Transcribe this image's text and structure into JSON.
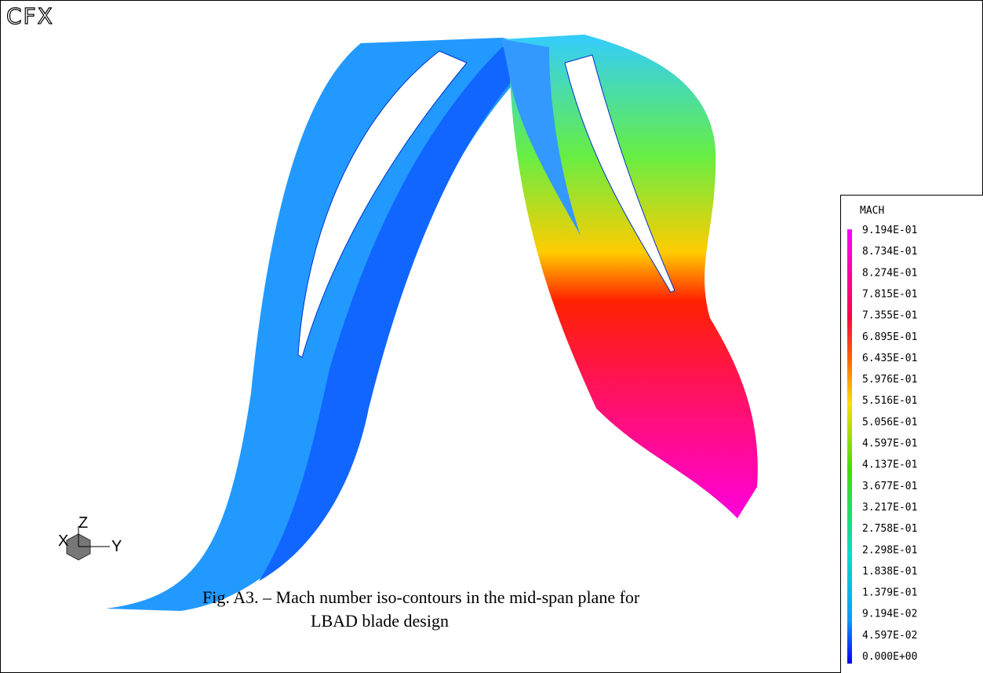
{
  "logo": "CFX",
  "legend": {
    "title": "MACH",
    "labels": [
      "9.194E-01",
      "8.734E-01",
      "8.274E-01",
      "7.815E-01",
      "7.355E-01",
      "6.895E-01",
      "6.435E-01",
      "5.976E-01",
      "5.516E-01",
      "5.056E-01",
      "4.597E-01",
      "4.137E-01",
      "3.677E-01",
      "3.217E-01",
      "2.758E-01",
      "2.298E-01",
      "1.838E-01",
      "1.379E-01",
      "9.194E-02",
      "4.597E-02",
      "0.000E+00"
    ]
  },
  "axes": {
    "x": "X",
    "y": "Y",
    "z": "Z"
  },
  "caption": {
    "line1": "Fig. A3. – Mach number iso-contours in the mid-span plane for",
    "line2": "LBAD blade design"
  }
}
